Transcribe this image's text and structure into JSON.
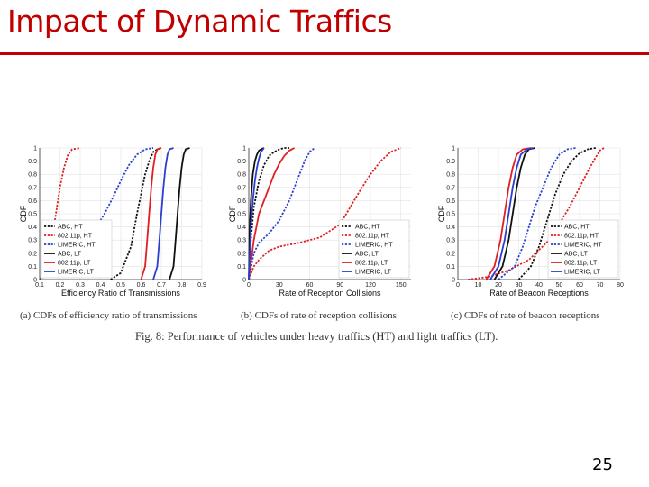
{
  "slide": {
    "title": "Impact of Dynamic Traffics",
    "page_number": "25"
  },
  "figure": {
    "caption": "Fig. 8: Performance of vehicles under heavy traffics (HT) and light traffics (LT).",
    "subcaptions": [
      "(a) CDFs of efficiency ratio of transmissions",
      "(b) CDFs of rate of reception collisions",
      "(c) CDFs of rate of beacon receptions"
    ]
  },
  "colors": {
    "title": "#c00000",
    "abc": "#111111",
    "p80211": "#e02020",
    "limeric": "#2a3fd0"
  },
  "chart_data": [
    {
      "type": "line",
      "xlabel": "Efficiency Ratio of Transmissions",
      "ylabel": "CDF",
      "xlim": [
        0.1,
        0.9
      ],
      "ylim": [
        0,
        1
      ],
      "xticks": [
        "0.1",
        "0.2",
        "0.3",
        "0.4",
        "0.5",
        "0.6",
        "0.7",
        "0.8",
        "0.9"
      ],
      "xtick_values": [
        0.1,
        0.2,
        0.3,
        0.4,
        0.5,
        0.6,
        0.7,
        0.8,
        0.9
      ],
      "yticks": [
        "0",
        "0.1",
        "0.2",
        "0.3",
        "0.4",
        "0.5",
        "0.6",
        "0.7",
        "0.8",
        "0.9",
        "1"
      ],
      "ytick_values": [
        0,
        0.1,
        0.2,
        0.3,
        0.4,
        0.5,
        0.6,
        0.7,
        0.8,
        0.9,
        1
      ],
      "legend_position": "bottom-left",
      "series": [
        {
          "name": "ABC, HT",
          "color": "#111111",
          "dash": true,
          "x": [
            0.45,
            0.5,
            0.55,
            0.58,
            0.6,
            0.62,
            0.64,
            0.66,
            0.68,
            0.7
          ],
          "y": [
            0,
            0.05,
            0.25,
            0.5,
            0.65,
            0.8,
            0.9,
            0.97,
            0.99,
            1
          ]
        },
        {
          "name": "802.11p, HT",
          "color": "#e02020",
          "dash": true,
          "x": [
            0.1,
            0.13,
            0.16,
            0.18,
            0.2,
            0.22,
            0.24,
            0.26,
            0.3
          ],
          "y": [
            0,
            0.1,
            0.3,
            0.5,
            0.7,
            0.85,
            0.95,
            0.99,
            1
          ]
        },
        {
          "name": "LIMERIC, HT",
          "color": "#2a3fd0",
          "dash": true,
          "x": [
            0.1,
            0.2,
            0.3,
            0.38,
            0.42,
            0.46,
            0.5,
            0.54,
            0.58,
            0.62,
            0.66
          ],
          "y": [
            0,
            0.1,
            0.25,
            0.4,
            0.5,
            0.62,
            0.75,
            0.87,
            0.95,
            0.99,
            1
          ]
        },
        {
          "name": "ABC, LT",
          "color": "#111111",
          "dash": false,
          "x": [
            0.74,
            0.76,
            0.77,
            0.78,
            0.79,
            0.8,
            0.81,
            0.82,
            0.84
          ],
          "y": [
            0,
            0.1,
            0.3,
            0.5,
            0.7,
            0.85,
            0.95,
            0.99,
            1
          ]
        },
        {
          "name": "802.11p, LT",
          "color": "#e02020",
          "dash": false,
          "x": [
            0.6,
            0.62,
            0.63,
            0.64,
            0.65,
            0.66,
            0.67,
            0.68,
            0.7
          ],
          "y": [
            0,
            0.1,
            0.3,
            0.5,
            0.7,
            0.85,
            0.95,
            0.99,
            1
          ]
        },
        {
          "name": "LIMERIC, LT",
          "color": "#2a3fd0",
          "dash": false,
          "x": [
            0.66,
            0.68,
            0.69,
            0.7,
            0.71,
            0.72,
            0.73,
            0.74,
            0.76
          ],
          "y": [
            0,
            0.1,
            0.3,
            0.5,
            0.7,
            0.85,
            0.95,
            0.99,
            1
          ]
        }
      ]
    },
    {
      "type": "line",
      "xlabel": "Rate of Reception Collisions",
      "ylabel": "CDF",
      "xlim": [
        0,
        160
      ],
      "ylim": [
        0,
        1
      ],
      "xticks": [
        "0",
        "30",
        "60",
        "90",
        "120",
        "150"
      ],
      "xtick_values": [
        0,
        30,
        60,
        90,
        120,
        150
      ],
      "yticks": [
        "0",
        "0.1",
        "0.2",
        "0.3",
        "0.4",
        "0.5",
        "0.6",
        "0.7",
        "0.8",
        "0.9",
        "1"
      ],
      "ytick_values": [
        0,
        0.1,
        0.2,
        0.3,
        0.4,
        0.5,
        0.6,
        0.7,
        0.8,
        0.9,
        1
      ],
      "legend_position": "bottom-right",
      "series": [
        {
          "name": "ABC, HT",
          "color": "#111111",
          "dash": true,
          "x": [
            0,
            2,
            5,
            10,
            15,
            20,
            25,
            30,
            35,
            40
          ],
          "y": [
            0,
            0.3,
            0.55,
            0.75,
            0.87,
            0.94,
            0.97,
            0.99,
            1,
            1
          ]
        },
        {
          "name": "802.11p, HT",
          "color": "#e02020",
          "dash": true,
          "x": [
            0,
            5,
            10,
            20,
            30,
            50,
            70,
            90,
            100,
            110,
            120,
            130,
            140,
            150
          ],
          "y": [
            0,
            0.1,
            0.15,
            0.22,
            0.25,
            0.28,
            0.32,
            0.42,
            0.55,
            0.68,
            0.8,
            0.9,
            0.97,
            1
          ]
        },
        {
          "name": "LIMERIC, HT",
          "color": "#2a3fd0",
          "dash": true,
          "x": [
            0,
            5,
            10,
            20,
            30,
            40,
            45,
            50,
            55,
            60,
            65
          ],
          "y": [
            0,
            0.2,
            0.28,
            0.35,
            0.45,
            0.6,
            0.7,
            0.8,
            0.9,
            0.97,
            1
          ]
        },
        {
          "name": "ABC, LT",
          "color": "#111111",
          "dash": false,
          "x": [
            0,
            1,
            2,
            4,
            6,
            8,
            10,
            12,
            15
          ],
          "y": [
            0,
            0.4,
            0.6,
            0.8,
            0.9,
            0.95,
            0.98,
            0.99,
            1
          ]
        },
        {
          "name": "802.11p, LT",
          "color": "#e02020",
          "dash": false,
          "x": [
            0,
            5,
            10,
            20,
            25,
            30,
            35,
            40,
            45
          ],
          "y": [
            0,
            0.3,
            0.5,
            0.7,
            0.8,
            0.88,
            0.94,
            0.98,
            1
          ]
        },
        {
          "name": "LIMERIC, LT",
          "color": "#2a3fd0",
          "dash": false,
          "x": [
            0,
            2,
            4,
            6,
            8,
            10,
            12,
            15
          ],
          "y": [
            0,
            0.4,
            0.6,
            0.75,
            0.85,
            0.92,
            0.97,
            1
          ]
        }
      ]
    },
    {
      "type": "line",
      "xlabel": "Rate of Beacon Receptions",
      "ylabel": "CDF",
      "xlim": [
        0,
        80
      ],
      "ylim": [
        0,
        1
      ],
      "xticks": [
        "0",
        "10",
        "20",
        "30",
        "40",
        "50",
        "60",
        "70",
        "80"
      ],
      "xtick_values": [
        0,
        10,
        20,
        30,
        40,
        50,
        60,
        70,
        80
      ],
      "yticks": [
        "0",
        "0.1",
        "0.2",
        "0.3",
        "0.4",
        "0.5",
        "0.6",
        "0.7",
        "0.8",
        "0.9",
        "1"
      ],
      "ytick_values": [
        0,
        0.1,
        0.2,
        0.3,
        0.4,
        0.5,
        0.6,
        0.7,
        0.8,
        0.9,
        1
      ],
      "legend_position": "bottom-right",
      "series": [
        {
          "name": "ABC, HT",
          "color": "#111111",
          "dash": true,
          "x": [
            30,
            36,
            40,
            44,
            48,
            52,
            56,
            60,
            64,
            68
          ],
          "y": [
            0,
            0.1,
            0.25,
            0.45,
            0.65,
            0.8,
            0.9,
            0.96,
            0.99,
            1
          ]
        },
        {
          "name": "802.11p, HT",
          "color": "#e02020",
          "dash": true,
          "x": [
            5,
            15,
            25,
            35,
            45,
            55,
            60,
            65,
            68,
            70,
            72
          ],
          "y": [
            0,
            0.02,
            0.07,
            0.15,
            0.3,
            0.55,
            0.7,
            0.85,
            0.93,
            0.98,
            1
          ]
        },
        {
          "name": "LIMERIC, HT",
          "color": "#2a3fd0",
          "dash": true,
          "x": [
            20,
            28,
            32,
            35,
            38,
            42,
            46,
            50,
            54,
            58
          ],
          "y": [
            0,
            0.1,
            0.25,
            0.4,
            0.55,
            0.7,
            0.85,
            0.95,
            0.99,
            1
          ]
        },
        {
          "name": "ABC, LT",
          "color": "#111111",
          "dash": false,
          "x": [
            18,
            22,
            25,
            27,
            29,
            31,
            33,
            35,
            38
          ],
          "y": [
            0,
            0.1,
            0.3,
            0.5,
            0.7,
            0.85,
            0.95,
            0.99,
            1
          ]
        },
        {
          "name": "802.11p, LT",
          "color": "#e02020",
          "dash": false,
          "x": [
            14,
            18,
            21,
            23,
            25,
            27,
            29,
            32,
            36
          ],
          "y": [
            0,
            0.1,
            0.3,
            0.5,
            0.7,
            0.85,
            0.95,
            0.99,
            1
          ]
        },
        {
          "name": "LIMERIC, LT",
          "color": "#2a3fd0",
          "dash": false,
          "x": [
            16,
            20,
            23,
            25,
            27,
            29,
            31,
            34,
            37
          ],
          "y": [
            0,
            0.1,
            0.3,
            0.5,
            0.7,
            0.85,
            0.95,
            0.99,
            1
          ]
        }
      ]
    }
  ]
}
